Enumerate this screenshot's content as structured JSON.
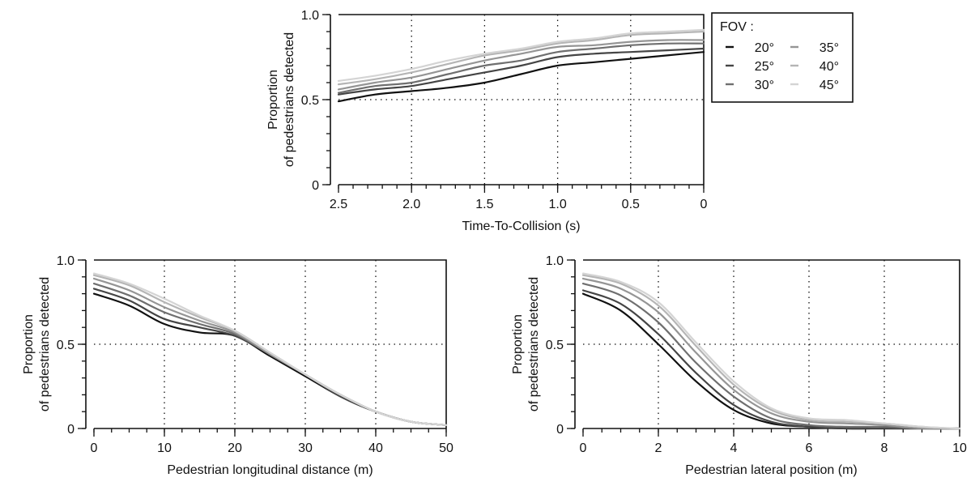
{
  "legend": {
    "title": "FOV :",
    "entries": [
      {
        "label": "20°",
        "color": "#111111"
      },
      {
        "label": "25°",
        "color": "#454545"
      },
      {
        "label": "30°",
        "color": "#6f6f6f"
      },
      {
        "label": "35°",
        "color": "#959595"
      },
      {
        "label": "40°",
        "color": "#b5b5b5"
      },
      {
        "label": "45°",
        "color": "#d4d4d4"
      }
    ]
  },
  "chart_data": [
    {
      "type": "line",
      "title": "",
      "xlabel": "Time-To-Collision (s)",
      "ylabel": [
        "Proportion",
        "of pedestrians detected"
      ],
      "xlim": [
        2.5,
        0
      ],
      "ylim": [
        0,
        1
      ],
      "x_reversed": true,
      "xticks": [
        2.5,
        2.0,
        1.5,
        1.0,
        0.5,
        0
      ],
      "xtick_labels": [
        "2.5",
        "2.0",
        "1.5",
        "1.0",
        "0.5",
        "0"
      ],
      "yticks": [
        0,
        0.5,
        1.0
      ],
      "ytick_labels": [
        "0",
        "0.5",
        "1.0"
      ],
      "grid": "dotted",
      "x_grid_at": [
        2.0,
        1.5,
        1.0,
        0.5
      ],
      "y_grid_at": [
        0.5
      ],
      "legend_position": "outside-right",
      "x": [
        2.5,
        2.25,
        2.0,
        1.75,
        1.5,
        1.25,
        1.0,
        0.75,
        0.5,
        0.25,
        0
      ],
      "series": [
        {
          "name": "20°",
          "values": [
            0.49,
            0.53,
            0.55,
            0.57,
            0.6,
            0.65,
            0.7,
            0.72,
            0.74,
            0.76,
            0.78
          ]
        },
        {
          "name": "25°",
          "values": [
            0.53,
            0.56,
            0.58,
            0.62,
            0.66,
            0.7,
            0.75,
            0.77,
            0.78,
            0.79,
            0.8
          ]
        },
        {
          "name": "30°",
          "values": [
            0.54,
            0.58,
            0.6,
            0.65,
            0.7,
            0.73,
            0.78,
            0.8,
            0.82,
            0.83,
            0.83
          ]
        },
        {
          "name": "35°",
          "values": [
            0.56,
            0.6,
            0.63,
            0.68,
            0.73,
            0.77,
            0.81,
            0.82,
            0.84,
            0.85,
            0.85
          ]
        },
        {
          "name": "40°",
          "values": [
            0.59,
            0.62,
            0.66,
            0.71,
            0.76,
            0.79,
            0.83,
            0.85,
            0.88,
            0.89,
            0.9
          ]
        },
        {
          "name": "45°",
          "values": [
            0.61,
            0.64,
            0.68,
            0.73,
            0.77,
            0.8,
            0.84,
            0.86,
            0.89,
            0.9,
            0.91
          ]
        }
      ]
    },
    {
      "type": "line",
      "title": "",
      "xlabel": "Pedestrian longitudinal distance (m)",
      "ylabel": [
        "Proportion",
        "of pedestrians detected"
      ],
      "xlim": [
        0,
        50
      ],
      "ylim": [
        0,
        1
      ],
      "xticks": [
        0,
        10,
        20,
        30,
        40,
        50
      ],
      "xtick_labels": [
        "0",
        "10",
        "20",
        "30",
        "40",
        "50"
      ],
      "yticks": [
        0,
        0.5,
        1.0
      ],
      "ytick_labels": [
        "0",
        "0.5",
        "1.0"
      ],
      "grid": "dotted",
      "x_grid_at": [
        10,
        20,
        30,
        40
      ],
      "y_grid_at": [
        0.5
      ],
      "x": [
        0,
        5,
        10,
        15,
        20,
        25,
        30,
        35,
        40,
        45,
        50
      ],
      "series": [
        {
          "name": "20°",
          "values": [
            0.8,
            0.73,
            0.62,
            0.57,
            0.55,
            0.43,
            0.31,
            0.19,
            0.1,
            0.04,
            0.02
          ]
        },
        {
          "name": "25°",
          "values": [
            0.83,
            0.76,
            0.65,
            0.6,
            0.55,
            0.44,
            0.32,
            0.19,
            0.1,
            0.04,
            0.02
          ]
        },
        {
          "name": "30°",
          "values": [
            0.86,
            0.79,
            0.69,
            0.62,
            0.56,
            0.44,
            0.32,
            0.2,
            0.1,
            0.04,
            0.02
          ]
        },
        {
          "name": "35°",
          "values": [
            0.89,
            0.82,
            0.72,
            0.64,
            0.57,
            0.44,
            0.32,
            0.2,
            0.1,
            0.04,
            0.02
          ]
        },
        {
          "name": "40°",
          "values": [
            0.91,
            0.85,
            0.75,
            0.66,
            0.58,
            0.45,
            0.32,
            0.2,
            0.1,
            0.04,
            0.02
          ]
        },
        {
          "name": "45°",
          "values": [
            0.92,
            0.86,
            0.77,
            0.67,
            0.58,
            0.45,
            0.32,
            0.2,
            0.1,
            0.04,
            0.02
          ]
        }
      ]
    },
    {
      "type": "line",
      "title": "",
      "xlabel": "Pedestrian lateral position (m)",
      "ylabel": [
        "Proportion",
        "of pedestrians detected"
      ],
      "xlim": [
        0,
        10
      ],
      "ylim": [
        0,
        1
      ],
      "xticks": [
        0,
        2,
        4,
        6,
        8,
        10
      ],
      "xtick_labels": [
        "0",
        "2",
        "4",
        "6",
        "8",
        "10"
      ],
      "yticks": [
        0,
        0.5,
        1.0
      ],
      "ytick_labels": [
        "0",
        "0.5",
        "1.0"
      ],
      "grid": "dotted",
      "x_grid_at": [
        2,
        4,
        6,
        8
      ],
      "y_grid_at": [
        0.5
      ],
      "x": [
        0,
        1,
        2,
        3,
        4,
        5,
        6,
        7,
        8,
        9,
        10
      ],
      "series": [
        {
          "name": "20°",
          "values": [
            0.8,
            0.7,
            0.5,
            0.28,
            0.11,
            0.03,
            0.01,
            0.0,
            0.0,
            0.0,
            0.0
          ]
        },
        {
          "name": "25°",
          "values": [
            0.82,
            0.74,
            0.56,
            0.33,
            0.14,
            0.04,
            0.01,
            0.0,
            0.0,
            0.0,
            0.0
          ]
        },
        {
          "name": "30°",
          "values": [
            0.86,
            0.79,
            0.63,
            0.39,
            0.19,
            0.06,
            0.02,
            0.01,
            0.01,
            0.0,
            0.0
          ]
        },
        {
          "name": "35°",
          "values": [
            0.89,
            0.83,
            0.69,
            0.45,
            0.23,
            0.09,
            0.04,
            0.03,
            0.02,
            0.0,
            0.0
          ]
        },
        {
          "name": "40°",
          "values": [
            0.91,
            0.86,
            0.73,
            0.49,
            0.26,
            0.11,
            0.05,
            0.04,
            0.03,
            0.01,
            0.0
          ]
        },
        {
          "name": "45°",
          "values": [
            0.92,
            0.87,
            0.75,
            0.51,
            0.28,
            0.12,
            0.06,
            0.05,
            0.03,
            0.01,
            0.0
          ]
        }
      ]
    }
  ]
}
